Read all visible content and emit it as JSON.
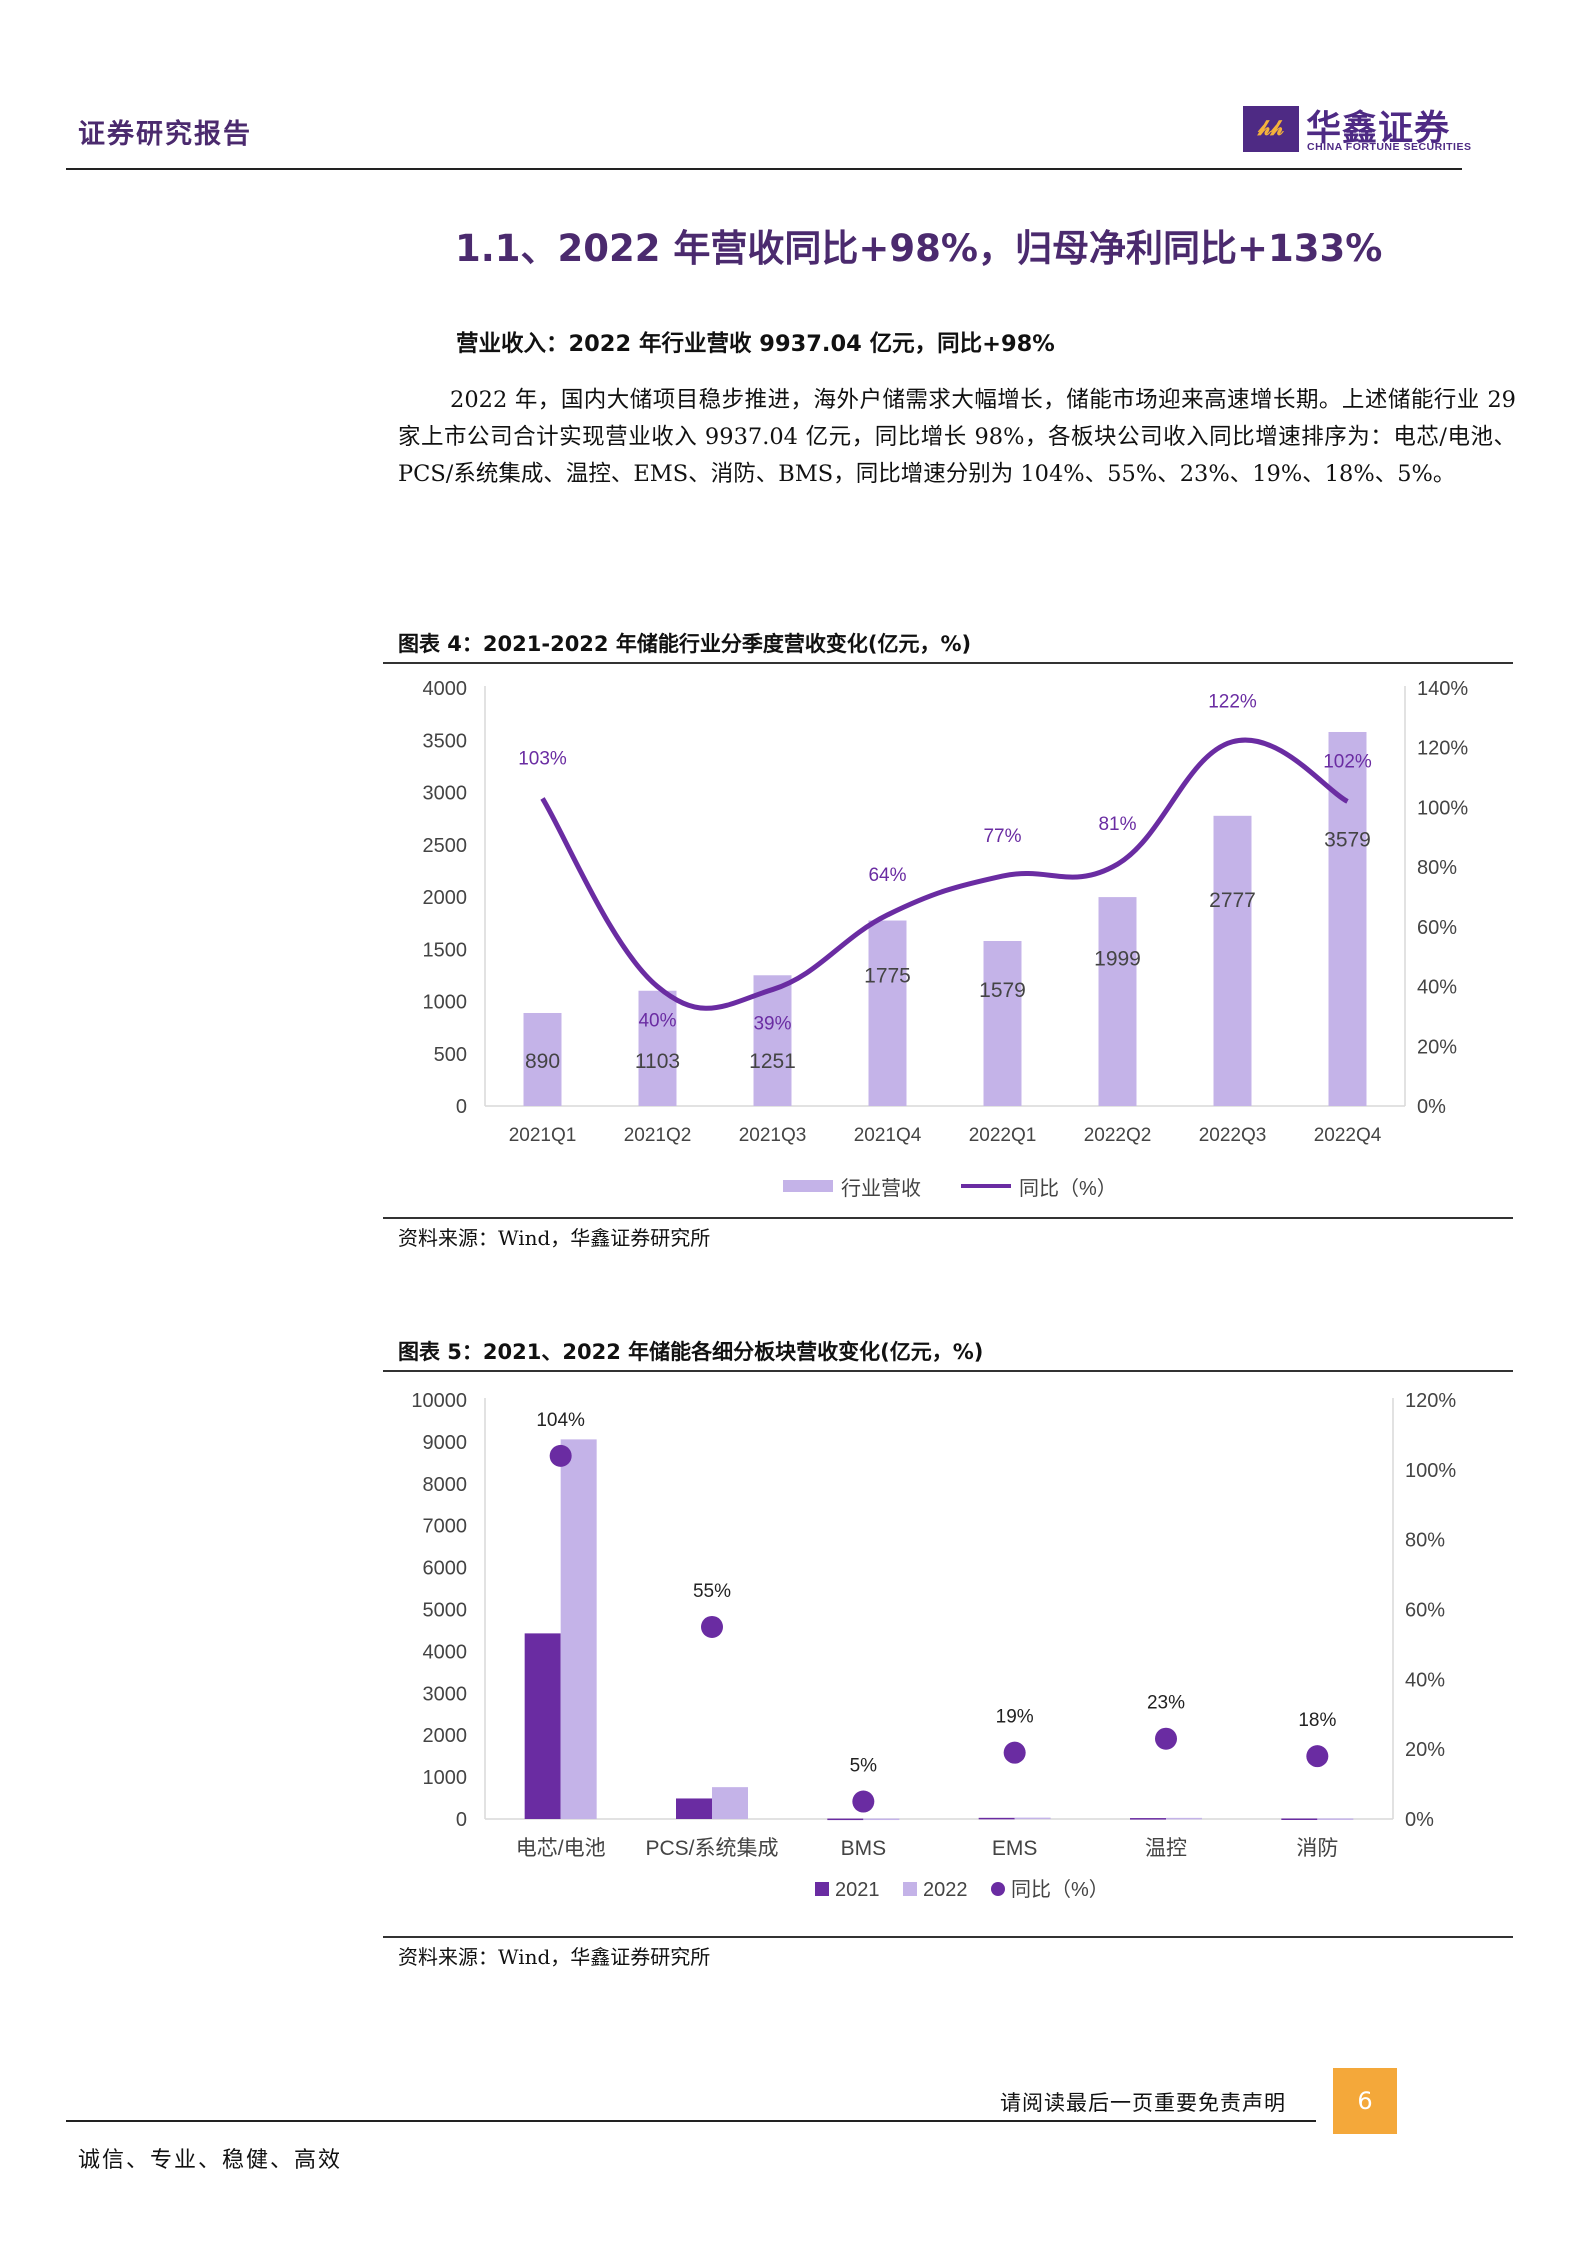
{
  "header": {
    "doc_type": "证券研究报告",
    "logo_mark": "𝒽𝒽",
    "brand_cn": "华鑫证券",
    "brand_en": "CHINA FORTUNE SECURITIES"
  },
  "section": {
    "title": "1.1、2022 年营收同比+98%，归母净利同比+133%",
    "sub_heading": "营业收入：2022 年行业营收 9937.04 亿元，同比+98%",
    "paragraph": "2022 年，国内大储项目稳步推进，海外户储需求大幅增长，储能市场迎来高速增长期。上述储能行业 29 家上市公司合计实现营业收入 9937.04 亿元，同比增长 98%，各板块公司收入同比增速排序为：电芯/电池、PCS/系统集成、温控、EMS、消防、BMS，同比增速分别为 104%、55%、23%、19%、18%、5%。"
  },
  "figure4": {
    "title": "图表 4：2021-2022 年储能行业分季度营收变化(亿元，%)",
    "source": "资料来源：Wind，华鑫证券研究所"
  },
  "figure5": {
    "title": "图表 5：2021、2022 年储能各细分板块营收变化(亿元，%)",
    "source": "资料来源：Wind，华鑫证券研究所"
  },
  "chart_data": [
    {
      "type": "bar",
      "categories": [
        "2021Q1",
        "2021Q2",
        "2021Q3",
        "2021Q4",
        "2022Q1",
        "2022Q2",
        "2022Q3",
        "2022Q4"
      ],
      "series": [
        {
          "name": "行业营收",
          "type": "bar",
          "axis": "left",
          "values": [
            890,
            1103,
            1251,
            1775,
            1579,
            1999,
            2777,
            3579
          ],
          "labels": [
            "890",
            "1103",
            "1251",
            "1775",
            "1579",
            "1999",
            "2777",
            "3579"
          ]
        },
        {
          "name": "同比（%）",
          "type": "line",
          "axis": "right",
          "values": [
            103,
            40,
            39,
            64,
            77,
            81,
            122,
            102
          ],
          "labels": [
            "103%",
            "40%",
            "39%",
            "64%",
            "77%",
            "81%",
            "122%",
            "102%"
          ]
        }
      ],
      "ylim_left": [
        0,
        4000
      ],
      "yticks_left": [
        "0",
        "500",
        "1000",
        "1500",
        "2000",
        "2500",
        "3000",
        "3500",
        "4000"
      ],
      "ylim_right": [
        0,
        140
      ],
      "yticks_right": [
        "0%",
        "20%",
        "40%",
        "60%",
        "80%",
        "100%",
        "120%",
        "140%"
      ],
      "legend_position": "bottom",
      "colors": {
        "bar": "#c4b3e8",
        "line": "#6a2ca2"
      }
    },
    {
      "type": "bar",
      "categories": [
        "电芯/电池",
        "PCS/系统集成",
        "BMS",
        "EMS",
        "温控",
        "消防"
      ],
      "series": [
        {
          "name": "2021",
          "type": "bar",
          "axis": "left",
          "values": [
            4430,
            490,
            10,
            28,
            22,
            12
          ]
        },
        {
          "name": "2022",
          "type": "bar",
          "axis": "left",
          "values": [
            9060,
            760,
            11,
            33,
            27,
            14
          ]
        },
        {
          "name": "同比（%）",
          "type": "scatter",
          "axis": "right",
          "values": [
            104,
            55,
            5,
            19,
            23,
            18
          ],
          "labels": [
            "104%",
            "55%",
            "5%",
            "19%",
            "23%",
            "18%"
          ]
        }
      ],
      "ylim_left": [
        0,
        10000
      ],
      "yticks_left": [
        "0",
        "1000",
        "2000",
        "3000",
        "4000",
        "5000",
        "6000",
        "7000",
        "8000",
        "9000",
        "10000"
      ],
      "ylim_right": [
        0,
        120
      ],
      "yticks_right": [
        "0%",
        "20%",
        "40%",
        "60%",
        "80%",
        "100%",
        "120%"
      ],
      "legend_position": "bottom",
      "colors": {
        "bar2021": "#6a2ca2",
        "bar2022": "#c4b3e8",
        "dot": "#6a2ca2"
      }
    }
  ],
  "footer": {
    "disclaimer": "请阅读最后一页重要免责声明",
    "page_number": "6",
    "motto": "诚信、专业、稳健、高效"
  }
}
